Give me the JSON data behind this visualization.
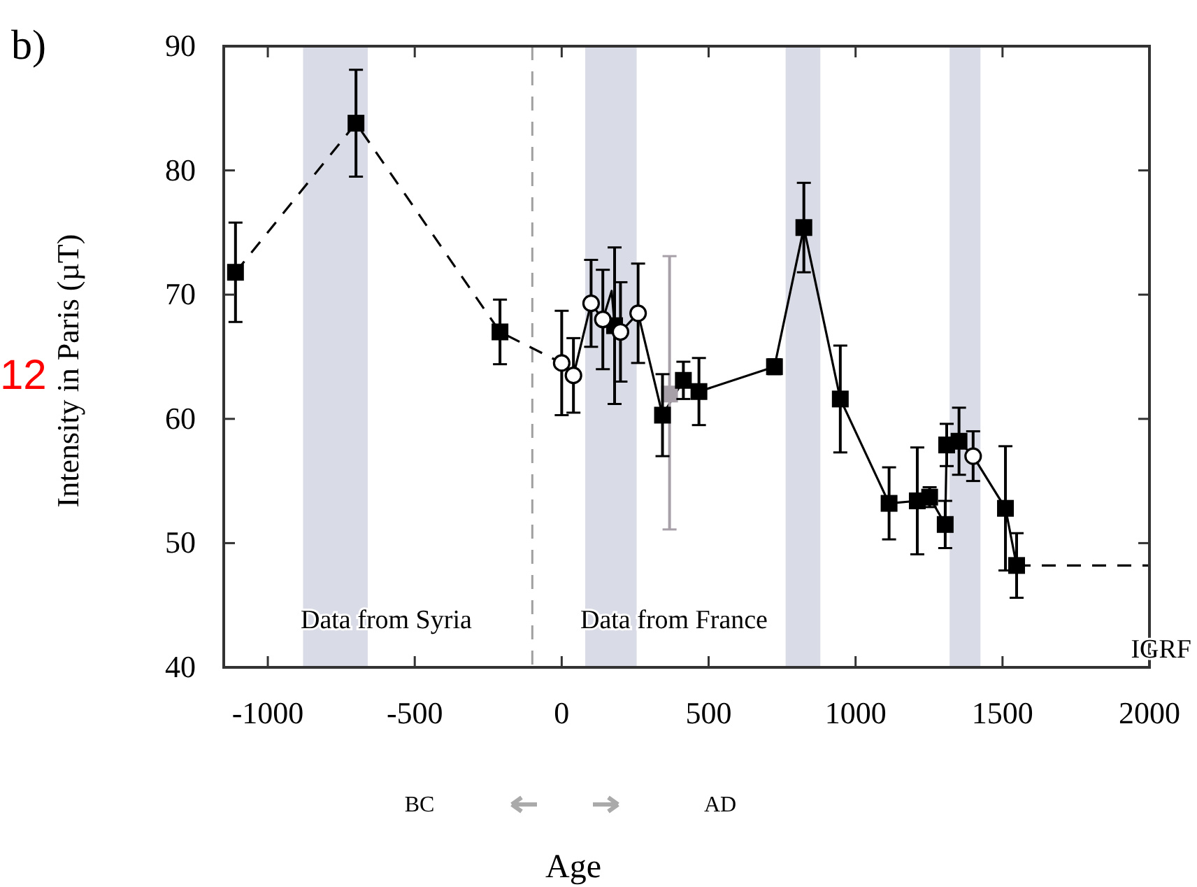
{
  "chart_data": {
    "type": "scatter",
    "xlabel": "Age",
    "ylabel": "Intensity in Paris (µT)",
    "xlim": [
      -1150,
      2000
    ],
    "ylim": [
      40,
      90
    ],
    "xticks": [
      -1000,
      -500,
      0,
      500,
      1000,
      1500,
      2000
    ],
    "yticks": [
      40,
      50,
      60,
      70,
      80,
      90
    ],
    "grid": false,
    "annotations": [
      "b)",
      "Data from Syria",
      "Data from France",
      "IGRF",
      "BC",
      "AD",
      "12"
    ],
    "bands": [
      {
        "axis": "x",
        "from": -880,
        "to": -660,
        "color": "#d9dbe6"
      },
      {
        "axis": "x",
        "from": 80,
        "to": 255,
        "color": "#d9dbe6"
      },
      {
        "axis": "x",
        "from": 762,
        "to": 880,
        "color": "#d9dbe6"
      },
      {
        "axis": "x",
        "from": 1320,
        "to": 1425,
        "color": "#d9dbe6"
      }
    ],
    "ref_lines": [
      {
        "axis": "x",
        "value": -100,
        "color": "#a0a0a0",
        "line_style": "dashed"
      }
    ],
    "series": [
      {
        "type": "line",
        "color": "#000000",
        "line_style": "dashed",
        "marker": "none",
        "x": [
          -1110,
          -700,
          -210,
          0
        ],
        "values": [
          71.8,
          83.8,
          67.0,
          64.5
        ]
      },
      {
        "type": "line",
        "color": "#000000",
        "line_style": "solid",
        "marker": "none",
        "x": [
          0,
          40,
          100,
          140,
          170,
          180,
          200,
          260,
          343,
          414,
          467,
          724,
          824,
          948,
          1114,
          1210,
          1252,
          1305,
          1310,
          1352,
          1400,
          1510,
          1548
        ],
        "values": [
          64.5,
          63.5,
          69.3,
          68.0,
          70.3,
          67.5,
          67.0,
          68.5,
          60.3,
          63.1,
          62.2,
          64.2,
          75.4,
          61.6,
          53.2,
          53.4,
          53.7,
          51.5,
          57.9,
          58.2,
          57.0,
          52.8,
          48.2
        ]
      },
      {
        "type": "line",
        "color": "#000000",
        "line_style": "dashed",
        "marker": "none",
        "x": [
          1548,
          2000
        ],
        "values": [
          48.2,
          48.2
        ]
      },
      {
        "type": "scatter",
        "color": "#a8a0a8",
        "marker": "square",
        "x": [
          367
        ],
        "values": [
          62.0
        ],
        "errors": [
          [
            51.1,
            73.1
          ]
        ]
      },
      {
        "type": "scatter",
        "color": "#000000",
        "marker": "square",
        "x": [
          -1110,
          -700,
          -210,
          180,
          343,
          414,
          467,
          724,
          824,
          948,
          1114,
          1210,
          1252,
          1305,
          1310,
          1352,
          1510,
          1548
        ],
        "values": [
          71.8,
          83.8,
          67.0,
          67.5,
          60.3,
          63.1,
          62.2,
          64.2,
          75.4,
          61.6,
          53.2,
          53.4,
          53.7,
          51.5,
          57.9,
          58.2,
          52.8,
          48.2
        ],
        "errors": [
          4,
          4.3,
          2.6,
          6.3,
          3.3,
          1.5,
          2.7,
          0.6,
          3.6,
          4.3,
          2.9,
          4.3,
          0.8,
          1.9,
          1.7,
          2.7,
          5.0,
          2.6
        ]
      },
      {
        "type": "scatter",
        "color": "#000000",
        "marker": "circle",
        "x": [
          0,
          40,
          100,
          140,
          200,
          260,
          1400
        ],
        "values": [
          64.5,
          63.5,
          69.3,
          68.0,
          67.0,
          68.5,
          57.0
        ],
        "errors": [
          4.2,
          3,
          3.5,
          4,
          4,
          4,
          2
        ]
      }
    ]
  }
}
